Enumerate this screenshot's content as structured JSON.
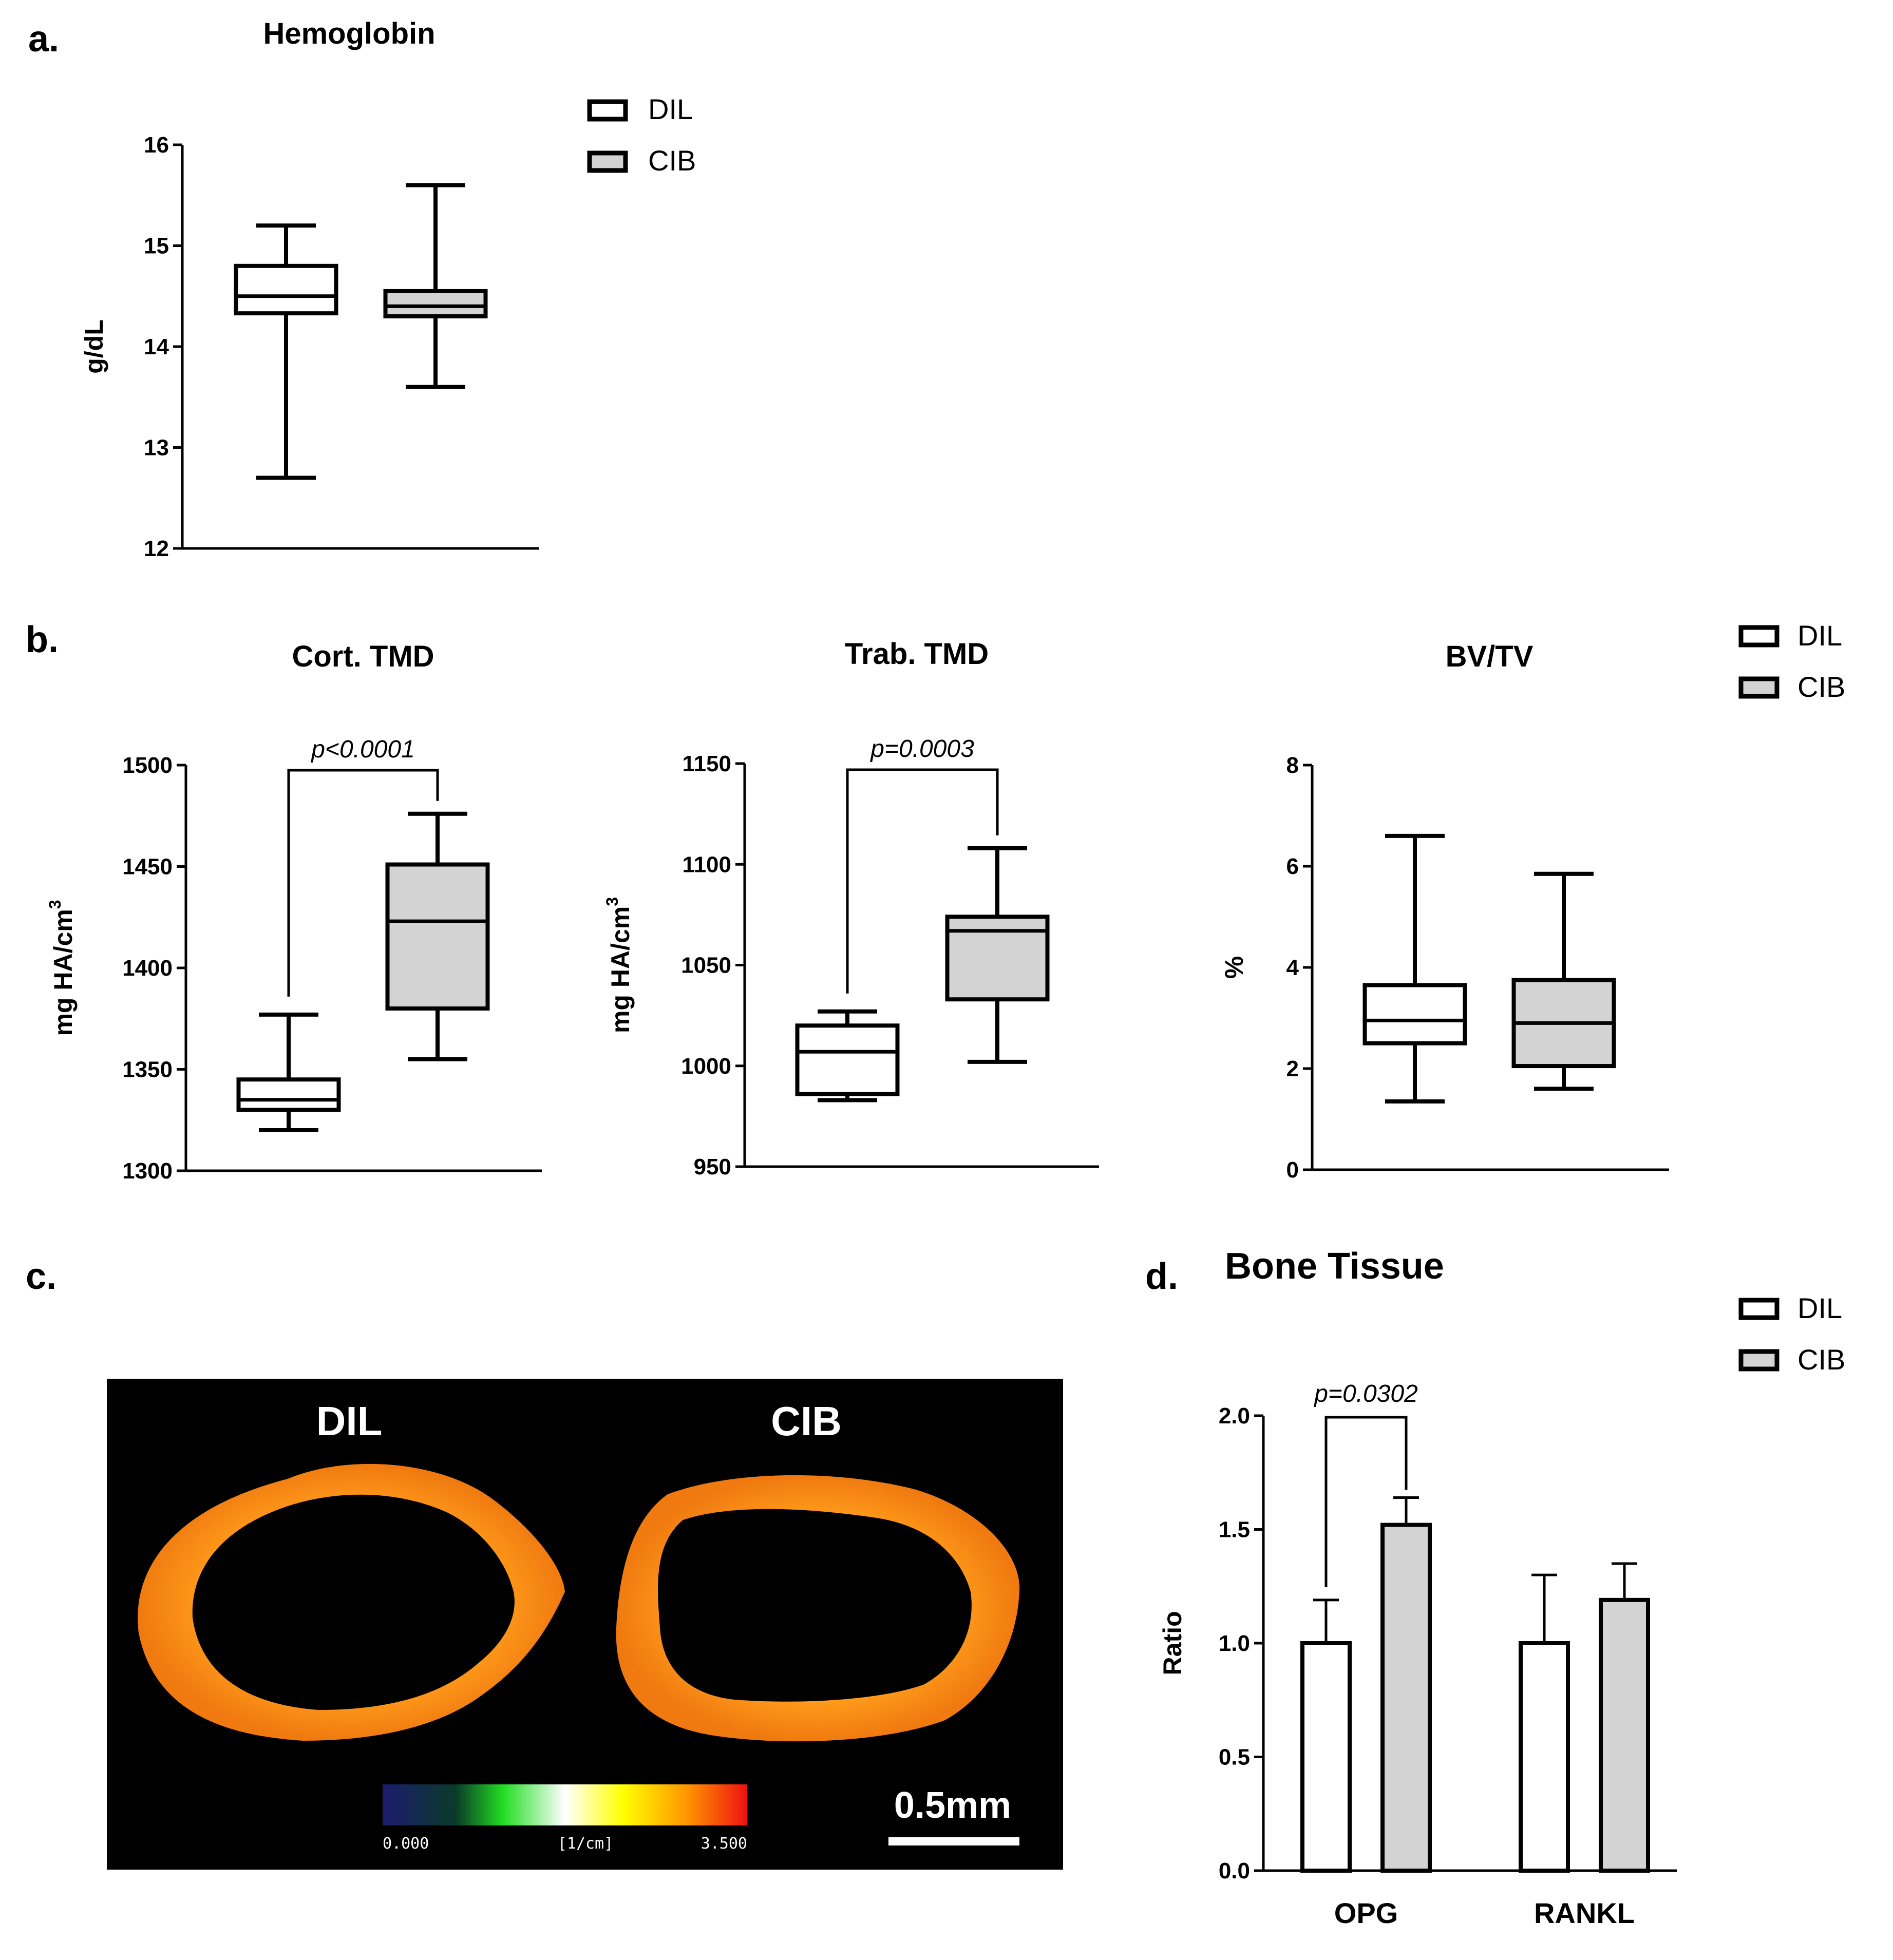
{
  "panels": {
    "a": "a.",
    "b": "b.",
    "c": "c.",
    "d": "d."
  },
  "legend": {
    "dil": "DIL",
    "cib": "CIB"
  },
  "colors": {
    "dil_fill": "#ffffff",
    "cib_fill": "#d3d3d3",
    "stroke": "#000000"
  },
  "chart_data": [
    {
      "id": "hemoglobin",
      "type": "box",
      "title": "Hemoglobin",
      "ylabel": "g/dL",
      "ylim": [
        12,
        16
      ],
      "yticks": [
        12,
        13,
        14,
        15,
        16
      ],
      "series": [
        {
          "name": "DIL",
          "min": 12.7,
          "q1": 14.33,
          "median": 14.5,
          "q3": 14.8,
          "max": 15.2
        },
        {
          "name": "CIB",
          "min": 13.6,
          "q1": 14.3,
          "median": 14.4,
          "q3": 14.55,
          "max": 15.6
        }
      ]
    },
    {
      "id": "cort_tmd",
      "type": "box",
      "title": "Cort. TMD",
      "ylabel": "mg HA/cm",
      "ylabel_sup": "3",
      "ylim": [
        1300,
        1500
      ],
      "yticks": [
        1300,
        1350,
        1400,
        1450,
        1500
      ],
      "pvalue": "p<0.0001",
      "series": [
        {
          "name": "DIL",
          "min": 1320,
          "q1": 1330,
          "median": 1335,
          "q3": 1345,
          "max": 1377
        },
        {
          "name": "CIB",
          "min": 1355,
          "q1": 1380,
          "median": 1423,
          "q3": 1451,
          "max": 1476
        }
      ]
    },
    {
      "id": "trab_tmd",
      "type": "box",
      "title": "Trab. TMD",
      "ylabel": "mg HA/cm",
      "ylabel_sup": "3",
      "ylim": [
        950,
        1150
      ],
      "yticks": [
        950,
        1000,
        1050,
        1100,
        1150
      ],
      "pvalue": "p=0.0003",
      "series": [
        {
          "name": "DIL",
          "min": 983,
          "q1": 986,
          "median": 1007,
          "q3": 1020,
          "max": 1027
        },
        {
          "name": "CIB",
          "min": 1002,
          "q1": 1033,
          "median": 1067,
          "q3": 1074,
          "max": 1108
        }
      ]
    },
    {
      "id": "bv_tv",
      "type": "box",
      "title": "BV/TV",
      "ylabel": "%",
      "ylim": [
        0,
        8
      ],
      "yticks": [
        0,
        2,
        4,
        6,
        8
      ],
      "series": [
        {
          "name": "DIL",
          "min": 1.35,
          "q1": 2.5,
          "median": 2.95,
          "q3": 3.65,
          "max": 6.6
        },
        {
          "name": "CIB",
          "min": 1.6,
          "q1": 2.05,
          "median": 2.9,
          "q3": 3.75,
          "max": 5.85
        }
      ]
    },
    {
      "id": "bone_tissue",
      "type": "bar",
      "title": "Bone Tissue",
      "ylabel": "Ratio",
      "ylim": [
        0,
        2
      ],
      "yticks": [
        "0.0",
        "0.5",
        "1.0",
        "1.5",
        "2.0"
      ],
      "categories": [
        "OPG",
        "RANKL"
      ],
      "pvalue": "p=0.0302",
      "series": [
        {
          "name": "DIL",
          "values": [
            1.0,
            1.0
          ],
          "errors": [
            0.19,
            0.3
          ]
        },
        {
          "name": "CIB",
          "values": [
            1.52,
            1.19
          ],
          "errors": [
            0.12,
            0.16
          ]
        }
      ]
    }
  ],
  "image": {
    "labels": [
      "DIL",
      "CIB"
    ],
    "colorbar_min": "0.000",
    "colorbar_unit": "[1/cm]",
    "colorbar_max": "3.500",
    "scale_bar": "0.5mm"
  }
}
